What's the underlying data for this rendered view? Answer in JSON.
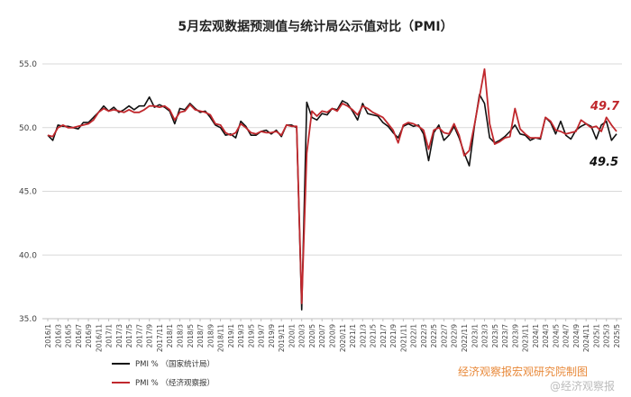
{
  "chart_data": {
    "type": "line",
    "title": "5月宏观数据预测值与统计局公示值对比（PMI）",
    "ylim": [
      35,
      55
    ],
    "yticks": [
      "35.0",
      "40.0",
      "45.0",
      "50.0",
      "55.0"
    ],
    "grid": true,
    "legend_position": "bottom-left",
    "xtick_labels": [
      "2016/1",
      "2016/3",
      "2016/5",
      "2016/7",
      "2016/9",
      "2016/11",
      "2017/1",
      "2017/3",
      "2017/5",
      "2017/7",
      "2017/9",
      "2017/11",
      "2018/1",
      "2018/3",
      "2018/5",
      "2018/7",
      "2018/9",
      "2018/11",
      "2019/1",
      "2019/3",
      "2019/5",
      "2019/7",
      "2019/9",
      "2019/11",
      "2020/1",
      "2020/3",
      "2020/5",
      "2020/7",
      "2020/9",
      "2020/11",
      "2021/1",
      "2021/3",
      "2021/5",
      "2021/7",
      "2021/9",
      "2021/11",
      "2022/1",
      "2022/3",
      "2022/5",
      "2022/7",
      "2022/9",
      "2022/11",
      "2023/1",
      "2023/3",
      "2023/5",
      "2023/7",
      "2023/9",
      "2023/11",
      "2024/1",
      "2024/3",
      "2024/5",
      "2024/7",
      "2024/9",
      "2024/11",
      "2025/1",
      "2025/3",
      "2025/5"
    ],
    "series": [
      {
        "name": "PMI   %     （国家统计局）",
        "color": "#111111",
        "values": [
          49.4,
          49.0,
          50.2,
          50.1,
          50.1,
          50.0,
          49.9,
          50.4,
          50.4,
          50.8,
          51.2,
          51.7,
          51.3,
          51.6,
          51.2,
          51.4,
          51.7,
          51.4,
          51.7,
          51.7,
          52.4,
          51.6,
          51.8,
          51.6,
          51.3,
          50.3,
          51.5,
          51.4,
          51.9,
          51.5,
          51.2,
          51.3,
          50.8,
          50.2,
          50.0,
          49.4,
          49.5,
          49.2,
          50.5,
          50.1,
          49.4,
          49.4,
          49.7,
          49.8,
          49.5,
          49.8,
          49.3,
          50.2,
          50.2,
          50.0,
          35.7,
          52.0,
          50.8,
          50.6,
          51.1,
          51.0,
          51.5,
          51.4,
          52.1,
          51.9,
          51.3,
          50.6,
          51.9,
          51.1,
          51.0,
          50.9,
          50.4,
          50.1,
          49.6,
          49.2,
          50.1,
          50.3,
          50.1,
          50.2,
          49.5,
          47.4,
          49.6,
          50.2,
          49.0,
          49.4,
          50.1,
          49.2,
          48.0,
          47.0,
          50.1,
          52.6,
          51.9,
          49.2,
          48.8,
          49.0,
          49.3,
          49.7,
          50.2,
          49.5,
          49.4,
          49.0,
          49.2,
          49.1,
          50.8,
          50.4,
          49.5,
          50.5,
          49.4,
          49.1,
          49.8,
          50.1,
          50.3,
          50.1,
          49.1,
          50.2,
          50.5,
          49.0,
          49.5
        ]
      },
      {
        "name": "PMI   %     （经济观察报）",
        "color": "#c0282d",
        "values": [
          49.4,
          49.3,
          50.0,
          50.2,
          50.0,
          50.0,
          50.1,
          50.2,
          50.3,
          50.6,
          51.2,
          51.5,
          51.3,
          51.4,
          51.3,
          51.2,
          51.4,
          51.2,
          51.2,
          51.4,
          51.7,
          51.7,
          51.6,
          51.7,
          51.4,
          50.6,
          51.2,
          51.3,
          51.8,
          51.4,
          51.3,
          51.2,
          51.0,
          50.3,
          50.2,
          49.6,
          49.4,
          49.6,
          50.3,
          50.0,
          49.6,
          49.5,
          49.7,
          49.6,
          49.6,
          49.7,
          49.4,
          50.2,
          50.1,
          50.1,
          36.2,
          48.0,
          51.3,
          50.9,
          51.3,
          51.2,
          51.5,
          51.3,
          51.9,
          51.7,
          51.4,
          51.0,
          51.7,
          51.5,
          51.2,
          51.0,
          50.8,
          50.3,
          49.8,
          48.8,
          50.2,
          50.4,
          50.3,
          50.1,
          49.8,
          48.3,
          49.8,
          50.0,
          49.6,
          49.5,
          50.3,
          49.4,
          47.8,
          48.2,
          50.2,
          52.4,
          54.6,
          50.3,
          48.7,
          48.9,
          49.2,
          49.3,
          51.5,
          49.9,
          49.5,
          49.2,
          49.2,
          49.2,
          50.8,
          50.5,
          49.8,
          49.7,
          49.5,
          49.6,
          49.7,
          50.6,
          50.3,
          50.0,
          50.1,
          49.7,
          50.8,
          50.2,
          49.7
        ]
      }
    ],
    "annotations": [
      {
        "text": "49.7",
        "color": "#c0282d"
      },
      {
        "text": "49.5",
        "color": "#111111"
      }
    ]
  },
  "credit": "经济观察报宏观研究院制图",
  "watermark": "@经济观察报"
}
